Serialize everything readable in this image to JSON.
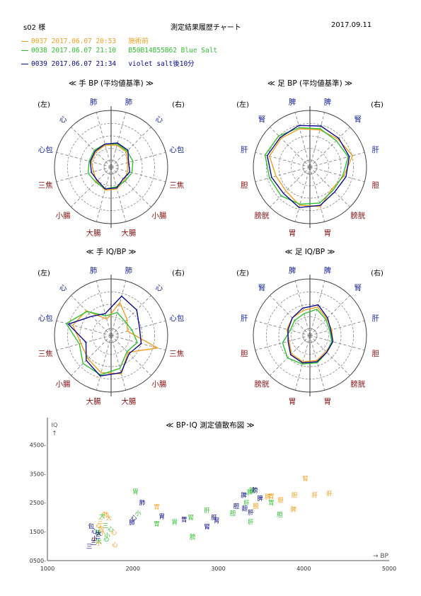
{
  "header": {
    "subject": "s02 様",
    "title": "測定結果履歴チャート",
    "date": "2017.09.11"
  },
  "legend": [
    {
      "id": "0037",
      "datetime": "2017.06.07 20:53",
      "note": "施術前",
      "color": "#f0a020"
    },
    {
      "id": "0038",
      "datetime": "2017.06.07 21:10",
      "note": "B50B14B55B62 Blue Salt",
      "color": "#30c030"
    },
    {
      "id": "0039",
      "datetime": "2017.06.07 21:34",
      "note": "violet salt後10分",
      "color": "#0a0a90"
    }
  ],
  "chart_data": [
    {
      "type": "radar",
      "title": "≪ 手 BP (平均値基準) ≫",
      "side_left": "(左)",
      "side_right": "(右)",
      "axes": [
        {
          "label": "肺",
          "side": "R",
          "color": "#1a2a9a"
        },
        {
          "label": "心",
          "side": "R",
          "color": "#1a2a9a"
        },
        {
          "label": "心包",
          "side": "R",
          "color": "#1a2a9a"
        },
        {
          "label": "三焦",
          "side": "R",
          "color": "#8a1010"
        },
        {
          "label": "小腸",
          "side": "R",
          "color": "#8a1010"
        },
        {
          "label": "大腸",
          "side": "R",
          "color": "#8a1010"
        },
        {
          "label": "大腸",
          "side": "L",
          "color": "#8a1010"
        },
        {
          "label": "小腸",
          "side": "L",
          "color": "#8a1010"
        },
        {
          "label": "三焦",
          "side": "L",
          "color": "#8a1010"
        },
        {
          "label": "心包",
          "side": "L",
          "color": "#1a2a9a"
        },
        {
          "label": "心",
          "side": "L",
          "color": "#1a2a9a"
        },
        {
          "label": "肺",
          "side": "L",
          "color": "#1a2a9a"
        }
      ],
      "series": [
        {
          "id": "0037",
          "values": [
            0.4,
            0.38,
            0.3,
            0.3,
            0.33,
            0.4,
            0.42,
            0.36,
            0.32,
            0.36,
            0.38,
            0.4
          ]
        },
        {
          "id": "0038",
          "values": [
            0.42,
            0.4,
            0.4,
            0.38,
            0.35,
            0.36,
            0.4,
            0.38,
            0.42,
            0.4,
            0.42,
            0.42
          ]
        },
        {
          "id": "0039",
          "values": [
            0.44,
            0.42,
            0.32,
            0.34,
            0.3,
            0.38,
            0.4,
            0.34,
            0.36,
            0.38,
            0.4,
            0.42
          ]
        }
      ]
    },
    {
      "type": "radar",
      "title": "≪ 足 BP (平均値基準) ≫",
      "side_left": "(左)",
      "side_right": "(右)",
      "axes": [
        {
          "label": "脾",
          "side": "R",
          "color": "#1a2a9a"
        },
        {
          "label": "腎",
          "side": "R",
          "color": "#1a2a9a"
        },
        {
          "label": "肝",
          "side": "R",
          "color": "#1a2a9a"
        },
        {
          "label": "胆",
          "side": "R",
          "color": "#8a1010"
        },
        {
          "label": "膀胱",
          "side": "R",
          "color": "#8a1010"
        },
        {
          "label": "胃",
          "side": "R",
          "color": "#8a1010"
        },
        {
          "label": "胃",
          "side": "L",
          "color": "#8a1010"
        },
        {
          "label": "膀胱",
          "side": "L",
          "color": "#8a1010"
        },
        {
          "label": "胆",
          "side": "L",
          "color": "#8a1010"
        },
        {
          "label": "肝",
          "side": "L",
          "color": "#1a2a9a"
        },
        {
          "label": "腎",
          "side": "L",
          "color": "#1a2a9a"
        },
        {
          "label": "脾",
          "side": "L",
          "color": "#1a2a9a"
        }
      ],
      "series": [
        {
          "id": "0037",
          "values": [
            0.68,
            0.7,
            0.78,
            0.62,
            0.55,
            0.72,
            0.7,
            0.6,
            0.62,
            0.74,
            0.72,
            0.7
          ]
        },
        {
          "id": "0038",
          "values": [
            0.7,
            0.66,
            0.7,
            0.6,
            0.58,
            0.66,
            0.68,
            0.72,
            0.74,
            0.82,
            0.78,
            0.72
          ]
        },
        {
          "id": "0039",
          "values": [
            0.75,
            0.72,
            0.72,
            0.66,
            0.62,
            0.7,
            0.74,
            0.66,
            0.7,
            0.78,
            0.74,
            0.76
          ]
        }
      ]
    },
    {
      "type": "radar",
      "title": "≪ 手 IQ/BP ≫",
      "side_left": "(左)",
      "side_right": "(右)",
      "axes": [
        {
          "label": "肺",
          "side": "R",
          "color": "#1a2a9a"
        },
        {
          "label": "心",
          "side": "R",
          "color": "#1a2a9a"
        },
        {
          "label": "心包",
          "side": "R",
          "color": "#1a2a9a"
        },
        {
          "label": "三焦",
          "side": "R",
          "color": "#8a1010"
        },
        {
          "label": "小腸",
          "side": "R",
          "color": "#8a1010"
        },
        {
          "label": "大腸",
          "side": "R",
          "color": "#8a1010"
        },
        {
          "label": "大腸",
          "side": "L",
          "color": "#8a1010"
        },
        {
          "label": "小腸",
          "side": "L",
          "color": "#8a1010"
        },
        {
          "label": "三焦",
          "side": "L",
          "color": "#8a1010"
        },
        {
          "label": "心包",
          "side": "L",
          "color": "#1a2a9a"
        },
        {
          "label": "心",
          "side": "L",
          "color": "#1a2a9a"
        },
        {
          "label": "肺",
          "side": "L",
          "color": "#1a2a9a"
        }
      ],
      "series": [
        {
          "id": "0037",
          "values": [
            0.6,
            0.4,
            0.3,
            0.85,
            0.42,
            0.7,
            0.68,
            0.58,
            0.55,
            0.7,
            0.62,
            0.3
          ]
        },
        {
          "id": "0038",
          "values": [
            0.42,
            0.35,
            0.38,
            0.48,
            0.4,
            0.6,
            0.72,
            0.7,
            0.58,
            0.82,
            0.6,
            0.36
          ]
        },
        {
          "id": "0039",
          "values": [
            0.72,
            0.64,
            0.52,
            0.55,
            0.45,
            0.68,
            0.74,
            0.62,
            0.46,
            0.78,
            0.48,
            0.4
          ]
        }
      ]
    },
    {
      "type": "radar",
      "title": "≪ 足 IQ/BP ≫",
      "side_left": "(左)",
      "side_right": "(右)",
      "axes": [
        {
          "label": "脾",
          "side": "R",
          "color": "#1a2a9a"
        },
        {
          "label": "腎",
          "side": "R",
          "color": "#1a2a9a"
        },
        {
          "label": "肝",
          "side": "R",
          "color": "#1a2a9a"
        },
        {
          "label": "胆",
          "side": "R",
          "color": "#8a1010"
        },
        {
          "label": "膀胱",
          "side": "R",
          "color": "#8a1010"
        },
        {
          "label": "胃",
          "side": "R",
          "color": "#8a1010"
        },
        {
          "label": "胃",
          "side": "L",
          "color": "#8a1010"
        },
        {
          "label": "膀胱",
          "side": "L",
          "color": "#8a1010"
        },
        {
          "label": "胆",
          "side": "L",
          "color": "#8a1010"
        },
        {
          "label": "肝",
          "side": "L",
          "color": "#1a2a9a"
        },
        {
          "label": "腎",
          "side": "L",
          "color": "#1a2a9a"
        },
        {
          "label": "脾",
          "side": "L",
          "color": "#1a2a9a"
        }
      ],
      "series": [
        {
          "id": "0037",
          "values": [
            0.52,
            0.42,
            0.4,
            0.42,
            0.4,
            0.46,
            0.48,
            0.46,
            0.38,
            0.42,
            0.44,
            0.46
          ]
        },
        {
          "id": "0038",
          "values": [
            0.48,
            0.4,
            0.36,
            0.4,
            0.42,
            0.5,
            0.52,
            0.56,
            0.5,
            0.36,
            0.38,
            0.4
          ]
        },
        {
          "id": "0039",
          "values": [
            0.56,
            0.44,
            0.38,
            0.42,
            0.42,
            0.48,
            0.5,
            0.48,
            0.4,
            0.4,
            0.44,
            0.5
          ]
        }
      ]
    },
    {
      "type": "scatter",
      "title": "≪ BP･IQ 測定値散布図 ≫",
      "xlabel": "→ BP",
      "ylabel": "IQ ↑",
      "xlim": [
        1000,
        5000
      ],
      "ylim": [
        500,
        5000
      ],
      "xticks": [
        "1000",
        "2000",
        "3000",
        "4000",
        "5000"
      ],
      "yticks": [
        "0500-",
        "1500-",
        "2500-",
        "3500-",
        "4500-"
      ],
      "points": [
        {
          "s": "0037",
          "label": "腎",
          "x": 4020,
          "y": 3350
        },
        {
          "s": "0037",
          "label": "胆",
          "x": 3890,
          "y": 2780
        },
        {
          "s": "0037",
          "label": "肝",
          "x": 4130,
          "y": 2780
        },
        {
          "s": "0037",
          "label": "肝",
          "x": 4300,
          "y": 2820
        },
        {
          "s": "0037",
          "label": "胆",
          "x": 3730,
          "y": 2600
        },
        {
          "s": "0037",
          "label": "脾",
          "x": 3580,
          "y": 2720
        },
        {
          "s": "0037",
          "label": "脾",
          "x": 3880,
          "y": 2290
        },
        {
          "s": "0037",
          "label": "胃",
          "x": 3620,
          "y": 2740
        },
        {
          "s": "0037",
          "label": "膀",
          "x": 3440,
          "y": 2400
        },
        {
          "s": "0037",
          "label": "胃",
          "x": 2280,
          "y": 2370
        },
        {
          "s": "0037",
          "label": "肺",
          "x": 1680,
          "y": 2100
        },
        {
          "s": "0037",
          "label": "大",
          "x": 1720,
          "y": 1990
        },
        {
          "s": "0037",
          "label": "三",
          "x": 1620,
          "y": 1860
        },
        {
          "s": "0037",
          "label": "心",
          "x": 1600,
          "y": 1720
        },
        {
          "s": "0037",
          "label": "包",
          "x": 1630,
          "y": 1610
        },
        {
          "s": "0037",
          "label": "小",
          "x": 1640,
          "y": 1470
        },
        {
          "s": "0037",
          "label": "心",
          "x": 1780,
          "y": 1490
        },
        {
          "s": "0037",
          "label": "大",
          "x": 1550,
          "y": 1250
        },
        {
          "s": "0037",
          "label": "小",
          "x": 1600,
          "y": 1120
        },
        {
          "s": "0037",
          "label": "心",
          "x": 1790,
          "y": 1060
        },
        {
          "s": "0038",
          "label": "胃",
          "x": 2030,
          "y": 2900
        },
        {
          "s": "0038",
          "label": "膀",
          "x": 3400,
          "y": 2950
        },
        {
          "s": "0038",
          "label": "胃",
          "x": 3620,
          "y": 2520
        },
        {
          "s": "0038",
          "label": "胆",
          "x": 3720,
          "y": 2100
        },
        {
          "s": "0038",
          "label": "脾",
          "x": 3370,
          "y": 2870
        },
        {
          "s": "0038",
          "label": "肝",
          "x": 3330,
          "y": 2500
        },
        {
          "s": "0038",
          "label": "肝",
          "x": 2870,
          "y": 2250
        },
        {
          "s": "0038",
          "label": "腎",
          "x": 2680,
          "y": 2010
        },
        {
          "s": "0038",
          "label": "胆",
          "x": 3170,
          "y": 2150
        },
        {
          "s": "0038",
          "label": "肝",
          "x": 3380,
          "y": 1850
        },
        {
          "s": "0038",
          "label": "胃",
          "x": 2490,
          "y": 1850
        },
        {
          "s": "0038",
          "label": "小",
          "x": 2060,
          "y": 2150
        },
        {
          "s": "0038",
          "label": "胃",
          "x": 2280,
          "y": 1790
        },
        {
          "s": "0038",
          "label": "膀",
          "x": 2700,
          "y": 1330
        },
        {
          "s": "0038",
          "label": "大",
          "x": 1640,
          "y": 2050
        },
        {
          "s": "0038",
          "label": "三",
          "x": 1680,
          "y": 1720
        },
        {
          "s": "0038",
          "label": "心",
          "x": 1740,
          "y": 1600
        },
        {
          "s": "0038",
          "label": "包",
          "x": 1590,
          "y": 1490
        },
        {
          "s": "0038",
          "label": "小",
          "x": 1700,
          "y": 1380
        },
        {
          "s": "0038",
          "label": "心",
          "x": 1690,
          "y": 1260
        },
        {
          "s": "0038",
          "label": "大",
          "x": 1600,
          "y": 1180
        },
        {
          "s": "0039",
          "label": "膀",
          "x": 3430,
          "y": 2950
        },
        {
          "s": "0039",
          "label": "脾",
          "x": 3300,
          "y": 2780
        },
        {
          "s": "0039",
          "label": "脾",
          "x": 3490,
          "y": 2660
        },
        {
          "s": "0039",
          "label": "胆",
          "x": 3310,
          "y": 2310
        },
        {
          "s": "0039",
          "label": "胆",
          "x": 3210,
          "y": 2390
        },
        {
          "s": "0039",
          "label": "肝",
          "x": 3380,
          "y": 2170
        },
        {
          "s": "0039",
          "label": "肝",
          "x": 2950,
          "y": 2000
        },
        {
          "s": "0039",
          "label": "腎",
          "x": 2980,
          "y": 1900
        },
        {
          "s": "0039",
          "label": "腎",
          "x": 2870,
          "y": 1690
        },
        {
          "s": "0039",
          "label": "胃",
          "x": 2600,
          "y": 1930
        },
        {
          "s": "0039",
          "label": "胃",
          "x": 2340,
          "y": 2040
        },
        {
          "s": "0039",
          "label": "肺",
          "x": 2110,
          "y": 2520
        },
        {
          "s": "0039",
          "label": "心",
          "x": 2010,
          "y": 1990
        },
        {
          "s": "0039",
          "label": "包",
          "x": 1510,
          "y": 1700
        },
        {
          "s": "0039",
          "label": "心",
          "x": 1550,
          "y": 1530
        },
        {
          "s": "0039",
          "label": "大",
          "x": 1600,
          "y": 1450
        },
        {
          "s": "0039",
          "label": "三",
          "x": 1590,
          "y": 1340
        },
        {
          "s": "0039",
          "label": "小",
          "x": 1550,
          "y": 1270
        },
        {
          "s": "0039",
          "label": "三",
          "x": 1540,
          "y": 1130
        },
        {
          "s": "0039",
          "label": "三",
          "x": 1490,
          "y": 1000
        },
        {
          "s": "0039",
          "label": "肺",
          "x": 1990,
          "y": 1830
        }
      ]
    }
  ]
}
